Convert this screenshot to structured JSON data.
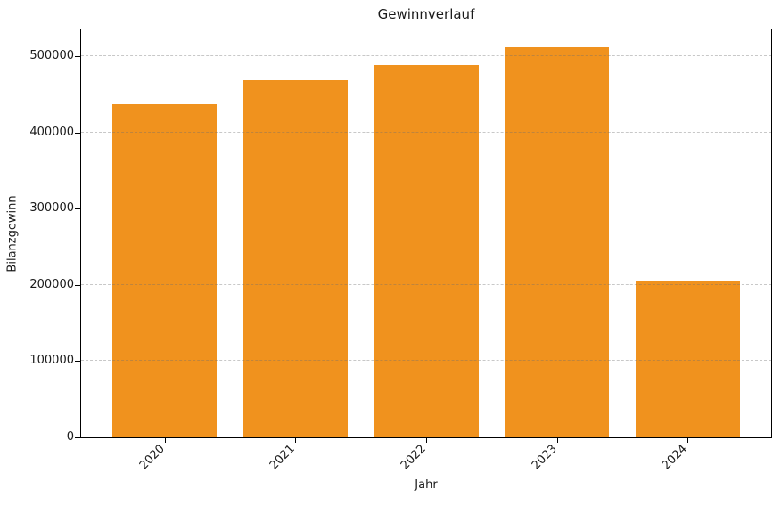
{
  "chart_data": {
    "type": "bar",
    "title": "Gewinnverlauf",
    "xlabel": "Jahr",
    "ylabel": "Bilanzgewinn",
    "categories": [
      "2020",
      "2021",
      "2022",
      "2023",
      "2024"
    ],
    "values": [
      436500,
      469000,
      488500,
      511500,
      206000
    ],
    "ylim": [
      0,
      535000
    ],
    "yticks": [
      0,
      100000,
      200000,
      300000,
      400000,
      500000
    ],
    "yticklabels": [
      "0",
      "100000",
      "200000",
      "300000",
      "400000",
      "500000"
    ],
    "bar_color": "#F0921E",
    "grid": "dashed-horizontal",
    "grid_color": "#c8c8c8",
    "spine_color": "#000000",
    "background_color": "#ffffff",
    "legend": "none",
    "bar_width_fraction": 0.8
  }
}
